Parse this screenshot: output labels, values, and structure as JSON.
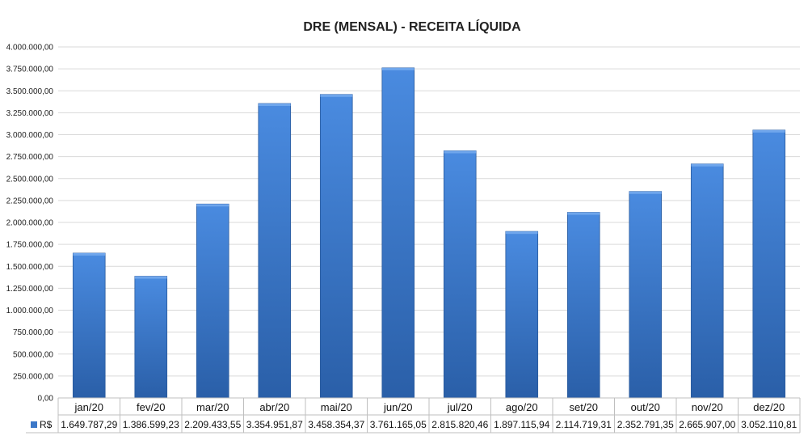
{
  "chart_data": {
    "type": "bar",
    "title": "DRE (MENSAL) - RECEITA LÍQUIDA",
    "categories": [
      "jan/20",
      "fev/20",
      "mar/20",
      "abr/20",
      "mai/20",
      "jun/20",
      "jul/20",
      "ago/20",
      "set/20",
      "out/20",
      "nov/20",
      "dez/20"
    ],
    "series": [
      {
        "name": "R$",
        "values": [
          1649787.29,
          1386599.23,
          2209433.55,
          3354951.87,
          3458354.37,
          3761165.05,
          2815820.46,
          1897115.94,
          2114719.31,
          2352791.35,
          2665907.0,
          3052110.81
        ],
        "labels": [
          "1.649.787,29",
          "1.386.599,23",
          "2.209.433,55",
          "3.354.951,87",
          "3.458.354,37",
          "3.761.165,05",
          "2.815.820,46",
          "1.897.115,94",
          "2.114.719,31",
          "2.352.791,35",
          "2.665.907,00",
          "3.052.110,81"
        ]
      }
    ],
    "ylim": [
      0,
      4000000
    ],
    "yticks": [
      0,
      250000,
      500000,
      750000,
      1000000,
      1250000,
      1500000,
      1750000,
      2000000,
      2250000,
      2500000,
      2750000,
      3000000,
      3250000,
      3500000,
      3750000,
      4000000
    ],
    "ytick_labels": [
      "0,00",
      "250.000,00",
      "500.000,00",
      "750.000,00",
      "1.000.000,00",
      "1.250.000,00",
      "1.500.000,00",
      "1.750.000,00",
      "2.000.000,00",
      "2.250.000,00",
      "2.500.000,00",
      "2.750.000,00",
      "3.000.000,00",
      "3.250.000,00",
      "3.500.000,00",
      "3.750.000,00",
      "4.000.000,00"
    ],
    "grid": true,
    "legend": "data-table-left",
    "bar_color": "#3c78c8"
  }
}
